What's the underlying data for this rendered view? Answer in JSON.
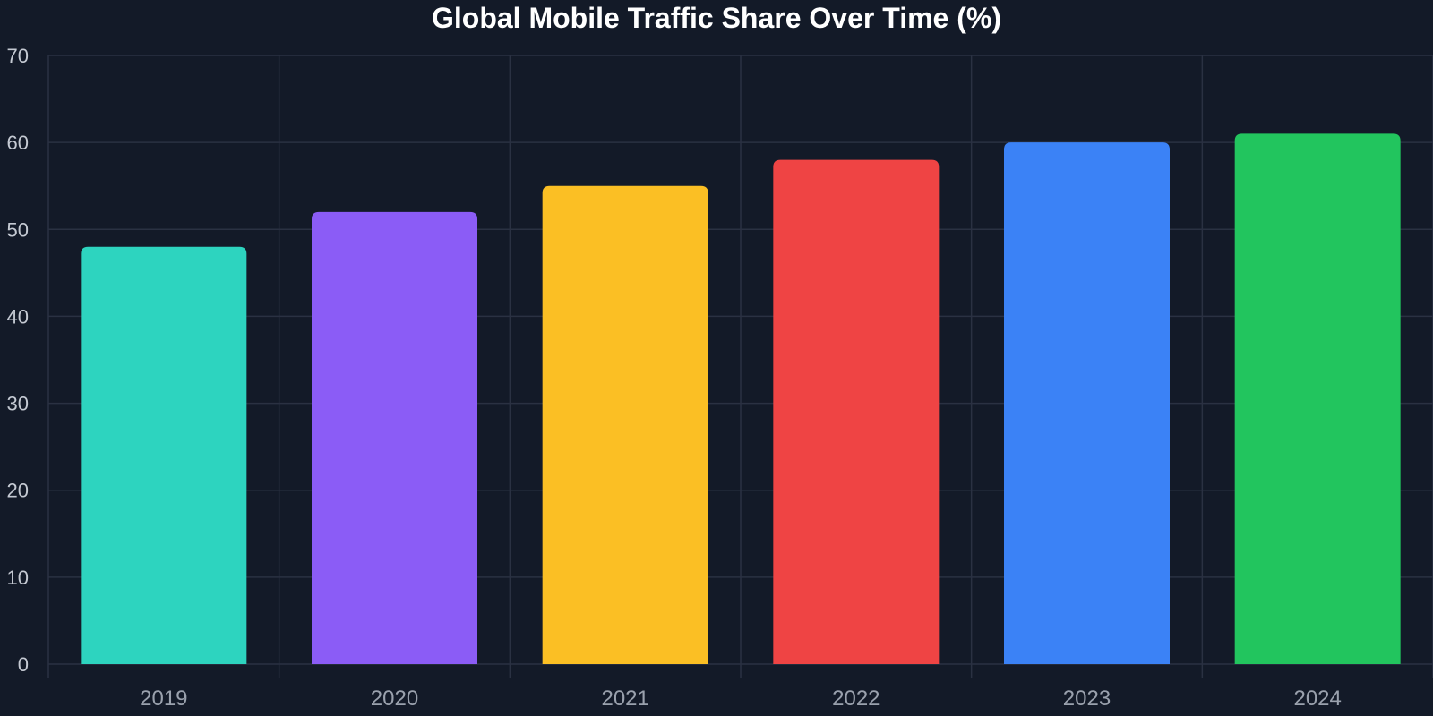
{
  "chart_data": {
    "type": "bar",
    "title": "Global Mobile Traffic Share Over Time (%)",
    "xlabel": "",
    "ylabel": "",
    "categories": [
      "2019",
      "2020",
      "2021",
      "2022",
      "2023",
      "2024"
    ],
    "values": [
      48,
      52,
      55,
      58,
      60,
      61
    ],
    "colors": [
      "#2dd4bf",
      "#8b5cf6",
      "#fbbf24",
      "#ef4444",
      "#3b82f6",
      "#22c55e"
    ],
    "ylim": [
      0,
      70
    ],
    "yticks": [
      0,
      10,
      20,
      30,
      40,
      50,
      60,
      70
    ],
    "grid": true,
    "legend": "none",
    "background": "#131a28",
    "grid_color": "#2a3142"
  }
}
